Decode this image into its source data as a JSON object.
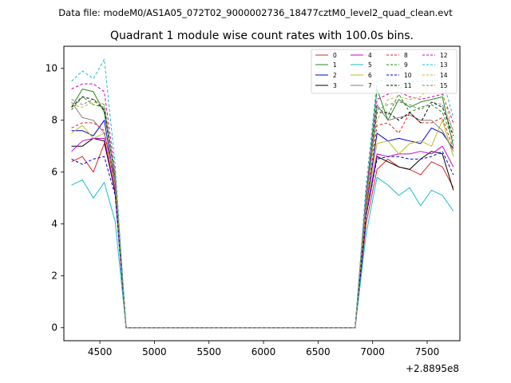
{
  "chart_data": {
    "type": "line",
    "suptitle": "Data file: modeM0/AS1A05_072T02_9000002736_18477cztM0_level2_quad_clean.evt",
    "title": "Quadrant 1 module wise count rates with 100.0s bins.",
    "xlabel": "",
    "ylabel": "",
    "x_offset_label": "+2.8895e8",
    "xlim": [
      4170,
      7800
    ],
    "ylim": [
      -0.5,
      10.85
    ],
    "xticks": [
      4500,
      5000,
      5500,
      6000,
      6500,
      7000,
      7500
    ],
    "yticks": [
      0,
      2,
      4,
      6,
      8,
      10
    ],
    "grid": false,
    "legend": {
      "placement": "top-right",
      "columns": 4
    },
    "x": [
      4240,
      4340,
      4440,
      4540,
      4640,
      4740,
      4840,
      4940,
      5040,
      5140,
      5240,
      5340,
      5440,
      5540,
      5640,
      5740,
      5840,
      5940,
      6040,
      6140,
      6240,
      6340,
      6440,
      6540,
      6640,
      6740,
      6840,
      6940,
      7040,
      7140,
      7240,
      7340,
      7440,
      7540,
      7640,
      7740
    ],
    "series": [
      {
        "name": "0",
        "color": "#d62728",
        "dash": false,
        "values": [
          6.4,
          6.6,
          6.0,
          7.1,
          5.3,
          0,
          0,
          0,
          0,
          0,
          0,
          0,
          0,
          0,
          0,
          0,
          0,
          0,
          0,
          0,
          0,
          0,
          0,
          0,
          0,
          0,
          0,
          4.0,
          6.1,
          6.5,
          6.2,
          6.1,
          5.9,
          6.4,
          6.2,
          5.4
        ]
      },
      {
        "name": "1",
        "color": "#228b22",
        "dash": false,
        "values": [
          8.5,
          9.2,
          9.1,
          8.3,
          5.9,
          0,
          0,
          0,
          0,
          0,
          0,
          0,
          0,
          0,
          0,
          0,
          0,
          0,
          0,
          0,
          0,
          0,
          0,
          0,
          0,
          0,
          0,
          5.1,
          9.2,
          8.0,
          8.8,
          8.5,
          8.7,
          8.8,
          8.9,
          7.0
        ]
      },
      {
        "name": "2",
        "color": "#0000cc",
        "dash": false,
        "values": [
          7.6,
          7.6,
          7.4,
          8.0,
          5.5,
          0,
          0,
          0,
          0,
          0,
          0,
          0,
          0,
          0,
          0,
          0,
          0,
          0,
          0,
          0,
          0,
          0,
          0,
          0,
          0,
          0,
          0,
          4.6,
          7.5,
          7.2,
          7.3,
          7.2,
          7.1,
          7.7,
          7.5,
          6.9
        ]
      },
      {
        "name": "3",
        "color": "#000000",
        "dash": false,
        "values": [
          7.0,
          7.0,
          7.3,
          7.2,
          5.2,
          0,
          0,
          0,
          0,
          0,
          0,
          0,
          0,
          0,
          0,
          0,
          0,
          0,
          0,
          0,
          0,
          0,
          0,
          0,
          0,
          0,
          0,
          4.3,
          6.6,
          6.4,
          6.2,
          6.1,
          6.5,
          6.8,
          6.7,
          5.3
        ]
      },
      {
        "name": "4",
        "color": "#cc00cc",
        "dash": false,
        "values": [
          6.8,
          7.2,
          7.3,
          7.3,
          5.3,
          0,
          0,
          0,
          0,
          0,
          0,
          0,
          0,
          0,
          0,
          0,
          0,
          0,
          0,
          0,
          0,
          0,
          0,
          0,
          0,
          0,
          0,
          4.4,
          6.7,
          6.6,
          6.7,
          6.7,
          6.8,
          6.7,
          7.0,
          6.2
        ]
      },
      {
        "name": "5",
        "color": "#17becf",
        "dash": false,
        "values": [
          5.5,
          5.7,
          5.0,
          5.6,
          4.1,
          0,
          0,
          0,
          0,
          0,
          0,
          0,
          0,
          0,
          0,
          0,
          0,
          0,
          0,
          0,
          0,
          0,
          0,
          0,
          0,
          0,
          0,
          3.6,
          5.8,
          5.5,
          5.1,
          5.4,
          4.7,
          5.3,
          5.1,
          4.5
        ]
      },
      {
        "name": "6",
        "color": "#bcbd22",
        "dash": false,
        "values": [
          7.5,
          7.8,
          7.3,
          7.5,
          5.5,
          0,
          0,
          0,
          0,
          0,
          0,
          0,
          0,
          0,
          0,
          0,
          0,
          0,
          0,
          0,
          0,
          0,
          0,
          0,
          0,
          0,
          0,
          4.5,
          7.1,
          7.2,
          6.7,
          7.1,
          7.2,
          7.0,
          8.0,
          6.6
        ]
      },
      {
        "name": "7",
        "color": "#7f7f7f",
        "dash": false,
        "values": [
          8.7,
          8.1,
          8.0,
          7.5,
          5.8,
          0,
          0,
          0,
          0,
          0,
          0,
          0,
          0,
          0,
          0,
          0,
          0,
          0,
          0,
          0,
          0,
          0,
          0,
          0,
          0,
          0,
          0,
          4.9,
          8.6,
          8.0,
          8.1,
          8.2,
          8.0,
          8.0,
          7.6,
          6.8
        ]
      },
      {
        "name": "8",
        "color": "#d62728",
        "dash": true,
        "values": [
          7.7,
          7.9,
          7.9,
          7.6,
          5.5,
          0,
          0,
          0,
          0,
          0,
          0,
          0,
          0,
          0,
          0,
          0,
          0,
          0,
          0,
          0,
          0,
          0,
          0,
          0,
          0,
          0,
          0,
          4.7,
          7.8,
          7.9,
          7.5,
          8.3,
          7.9,
          7.9,
          8.1,
          6.9
        ]
      },
      {
        "name": "9",
        "color": "#228b22",
        "dash": true,
        "values": [
          8.4,
          8.9,
          8.6,
          8.5,
          5.7,
          0,
          0,
          0,
          0,
          0,
          0,
          0,
          0,
          0,
          0,
          0,
          0,
          0,
          0,
          0,
          0,
          0,
          0,
          0,
          0,
          0,
          0,
          5.0,
          8.5,
          8.2,
          9.0,
          8.3,
          8.5,
          8.6,
          8.3,
          7.2
        ]
      },
      {
        "name": "10",
        "color": "#0000cc",
        "dash": true,
        "values": [
          6.5,
          6.3,
          6.5,
          6.6,
          5.1,
          0,
          0,
          0,
          0,
          0,
          0,
          0,
          0,
          0,
          0,
          0,
          0,
          0,
          0,
          0,
          0,
          0,
          0,
          0,
          0,
          0,
          0,
          4.3,
          6.5,
          6.6,
          6.6,
          6.5,
          6.5,
          6.6,
          6.8,
          5.9
        ]
      },
      {
        "name": "11",
        "color": "#000000",
        "dash": true,
        "values": [
          8.5,
          8.9,
          8.8,
          8.4,
          5.8,
          0,
          0,
          0,
          0,
          0,
          0,
          0,
          0,
          0,
          0,
          0,
          0,
          0,
          0,
          0,
          0,
          0,
          0,
          0,
          0,
          0,
          0,
          4.9,
          8.3,
          8.3,
          8.0,
          8.3,
          7.9,
          8.7,
          8.5,
          7.4
        ]
      },
      {
        "name": "12",
        "color": "#cc00cc",
        "dash": true,
        "values": [
          9.2,
          9.4,
          9.4,
          9.1,
          6.0,
          0,
          0,
          0,
          0,
          0,
          0,
          0,
          0,
          0,
          0,
          0,
          0,
          0,
          0,
          0,
          0,
          0,
          0,
          0,
          0,
          0,
          0,
          5.2,
          8.8,
          9.0,
          9.1,
          8.9,
          8.8,
          8.9,
          9.0,
          7.9
        ]
      },
      {
        "name": "13",
        "color": "#17becf",
        "dash": true,
        "values": [
          9.5,
          9.9,
          9.6,
          10.35,
          6.3,
          0,
          0,
          0,
          0,
          0,
          0,
          0,
          0,
          0,
          0,
          0,
          0,
          0,
          0,
          0,
          0,
          0,
          0,
          0,
          0,
          0,
          0,
          5.5,
          9.5,
          9.6,
          9.2,
          9.5,
          9.5,
          9.5,
          9.6,
          8.1
        ]
      },
      {
        "name": "14",
        "color": "#bcbd22",
        "dash": true,
        "values": [
          8.6,
          8.5,
          8.7,
          8.6,
          5.8,
          0,
          0,
          0,
          0,
          0,
          0,
          0,
          0,
          0,
          0,
          0,
          0,
          0,
          0,
          0,
          0,
          0,
          0,
          0,
          0,
          0,
          0,
          4.9,
          8.0,
          8.8,
          8.9,
          8.8,
          8.9,
          9.4,
          9.1,
          7.5
        ]
      },
      {
        "name": "15",
        "color": "#7f7f7f",
        "dash": true,
        "values": [
          8.8,
          8.6,
          8.8,
          8.6,
          5.9,
          0,
          0,
          0,
          0,
          0,
          0,
          0,
          0,
          0,
          0,
          0,
          0,
          0,
          0,
          0,
          0,
          0,
          0,
          0,
          0,
          0,
          0,
          5.0,
          8.4,
          8.6,
          8.7,
          8.6,
          8.4,
          8.7,
          8.6,
          7.6
        ]
      }
    ]
  }
}
